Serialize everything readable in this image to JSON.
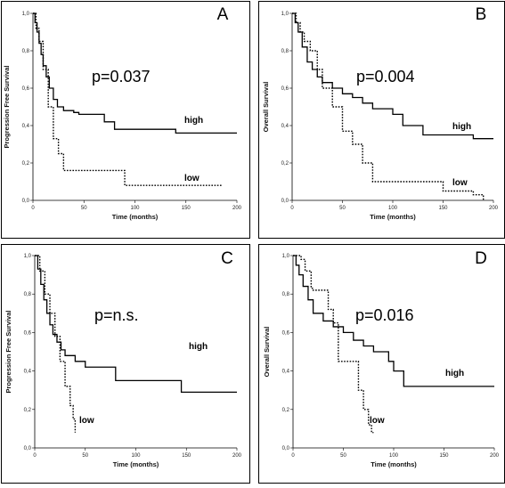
{
  "figure": {
    "panel_count": 4
  },
  "chart_data": [
    {
      "type": "line",
      "panel_label": "A",
      "annotation": "p=0.037",
      "xlabel": "Time (months)",
      "ylabel": "Progression Free Survival",
      "xlim": [
        0,
        200
      ],
      "ylim": [
        0,
        1
      ],
      "xticks": [
        0,
        50,
        100,
        150,
        200
      ],
      "yticks": [
        0.0,
        0.2,
        0.4,
        0.6,
        0.8,
        1.0
      ],
      "ytick_labels": [
        "0,0",
        "0,2",
        "0,4",
        "0,6",
        "0,8",
        "1,0"
      ],
      "grid": false,
      "series": [
        {
          "name": "high",
          "style": "solid",
          "x": [
            0,
            2,
            4,
            6,
            8,
            10,
            13,
            16,
            20,
            24,
            30,
            40,
            45,
            70,
            80,
            140,
            200
          ],
          "y": [
            1.0,
            0.95,
            0.9,
            0.84,
            0.78,
            0.72,
            0.66,
            0.6,
            0.54,
            0.5,
            0.48,
            0.47,
            0.46,
            0.42,
            0.38,
            0.36,
            0.36
          ]
        },
        {
          "name": "low",
          "style": "dotted",
          "x": [
            0,
            3,
            6,
            10,
            15,
            20,
            25,
            30,
            90,
            185
          ],
          "y": [
            1.0,
            0.92,
            0.85,
            0.7,
            0.5,
            0.33,
            0.25,
            0.16,
            0.08,
            0.08
          ]
        }
      ]
    },
    {
      "type": "line",
      "panel_label": "B",
      "annotation": "p=0.004",
      "xlabel": "Time (months)",
      "ylabel": "Overall Survival",
      "xlim": [
        0,
        200
      ],
      "ylim": [
        0,
        1
      ],
      "xticks": [
        0,
        50,
        100,
        150,
        200
      ],
      "yticks": [
        0.0,
        0.2,
        0.4,
        0.6,
        0.8,
        1.0
      ],
      "ytick_labels": [
        "0,0",
        "0,2",
        "0,4",
        "0,6",
        "0,8",
        "1,0"
      ],
      "grid": false,
      "series": [
        {
          "name": "high",
          "style": "solid",
          "x": [
            0,
            3,
            6,
            10,
            15,
            20,
            25,
            30,
            40,
            50,
            60,
            70,
            80,
            100,
            110,
            130,
            180,
            200
          ],
          "y": [
            1.0,
            0.95,
            0.9,
            0.82,
            0.74,
            0.7,
            0.66,
            0.63,
            0.6,
            0.57,
            0.55,
            0.52,
            0.49,
            0.46,
            0.4,
            0.35,
            0.33,
            0.33
          ]
        },
        {
          "name": "low",
          "style": "dotted",
          "x": [
            0,
            4,
            8,
            12,
            18,
            25,
            30,
            40,
            50,
            60,
            70,
            80,
            150,
            180,
            190
          ],
          "y": [
            1.0,
            0.95,
            0.9,
            0.85,
            0.8,
            0.7,
            0.6,
            0.5,
            0.37,
            0.3,
            0.2,
            0.1,
            0.05,
            0.03,
            0.0
          ]
        }
      ]
    },
    {
      "type": "line",
      "panel_label": "C",
      "annotation": "p=n.s.",
      "xlabel": "Time (months)",
      "ylabel": "Progression Free Survival",
      "xlim": [
        0,
        200
      ],
      "ylim": [
        0,
        1
      ],
      "xticks": [
        0,
        50,
        100,
        150,
        200
      ],
      "yticks": [
        0.0,
        0.2,
        0.4,
        0.6,
        0.8,
        1.0
      ],
      "ytick_labels": [
        "0,0",
        "0,2",
        "0,4",
        "0,6",
        "0,8",
        "1,0"
      ],
      "grid": false,
      "series": [
        {
          "name": "high",
          "style": "solid",
          "x": [
            0,
            3,
            6,
            9,
            12,
            15,
            18,
            22,
            26,
            30,
            40,
            50,
            80,
            145,
            200
          ],
          "y": [
            1.0,
            0.93,
            0.85,
            0.77,
            0.7,
            0.64,
            0.59,
            0.55,
            0.51,
            0.48,
            0.45,
            0.42,
            0.35,
            0.29,
            0.29
          ]
        },
        {
          "name": "low",
          "style": "dotted",
          "x": [
            0,
            5,
            10,
            15,
            20,
            25,
            30,
            35,
            38,
            40
          ],
          "y": [
            1.0,
            0.92,
            0.8,
            0.7,
            0.58,
            0.45,
            0.32,
            0.22,
            0.15,
            0.08
          ]
        }
      ]
    },
    {
      "type": "line",
      "panel_label": "D",
      "annotation": "p=0.016",
      "xlabel": "Time (months)",
      "ylabel": "Overall Survival",
      "xlim": [
        0,
        200
      ],
      "ylim": [
        0,
        1
      ],
      "xticks": [
        0,
        50,
        100,
        150,
        200
      ],
      "yticks": [
        0.0,
        0.2,
        0.4,
        0.6,
        0.8,
        1.0
      ],
      "ytick_labels": [
        "0,0",
        "0,2",
        "0,4",
        "0,6",
        "0,8",
        "1,0"
      ],
      "grid": false,
      "series": [
        {
          "name": "high",
          "style": "solid",
          "x": [
            0,
            3,
            6,
            10,
            15,
            20,
            30,
            40,
            50,
            60,
            70,
            80,
            95,
            100,
            110,
            200
          ],
          "y": [
            1.0,
            0.95,
            0.9,
            0.84,
            0.77,
            0.7,
            0.66,
            0.63,
            0.6,
            0.56,
            0.53,
            0.5,
            0.45,
            0.4,
            0.32,
            0.32
          ]
        },
        {
          "name": "low",
          "style": "dotted",
          "x": [
            0,
            8,
            12,
            18,
            20,
            30,
            35,
            40,
            45,
            55,
            65,
            70,
            75,
            78,
            80
          ],
          "y": [
            1.0,
            0.98,
            0.92,
            0.83,
            0.82,
            0.82,
            0.72,
            0.65,
            0.45,
            0.45,
            0.3,
            0.2,
            0.12,
            0.08,
            0.08
          ]
        }
      ]
    }
  ]
}
